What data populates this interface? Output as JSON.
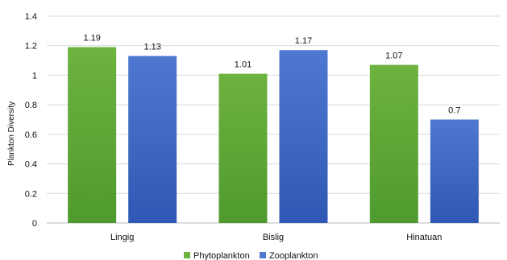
{
  "chart_data": {
    "type": "bar",
    "categories": [
      "Lingig",
      "Bislig",
      "Hinatuan"
    ],
    "series": [
      {
        "name": "Phytoplankton",
        "values": [
          1.19,
          1.01,
          1.07
        ],
        "color": "#6eb23f",
        "color_dark": "#4f9a2e"
      },
      {
        "name": "Zooplankton",
        "values": [
          1.13,
          1.17,
          0.7
        ],
        "color": "#4f79d0",
        "color_dark": "#2f58b4"
      }
    ],
    "data_labels": [
      [
        "1.19",
        "1.01",
        "1.07"
      ],
      [
        "1.13",
        "1.17",
        "0.7"
      ]
    ],
    "ylabel": "Plankton Diversity",
    "ylim": [
      0,
      1.4
    ],
    "yticks": [
      0,
      0.2,
      0.4,
      0.6,
      0.8,
      1,
      1.2,
      1.4
    ],
    "ytick_labels": [
      "0",
      "0.2",
      "0.4",
      "0.6",
      "0.8",
      "1",
      "1.2",
      "1.4"
    ],
    "grid": true,
    "legend_position": "bottom-center"
  }
}
